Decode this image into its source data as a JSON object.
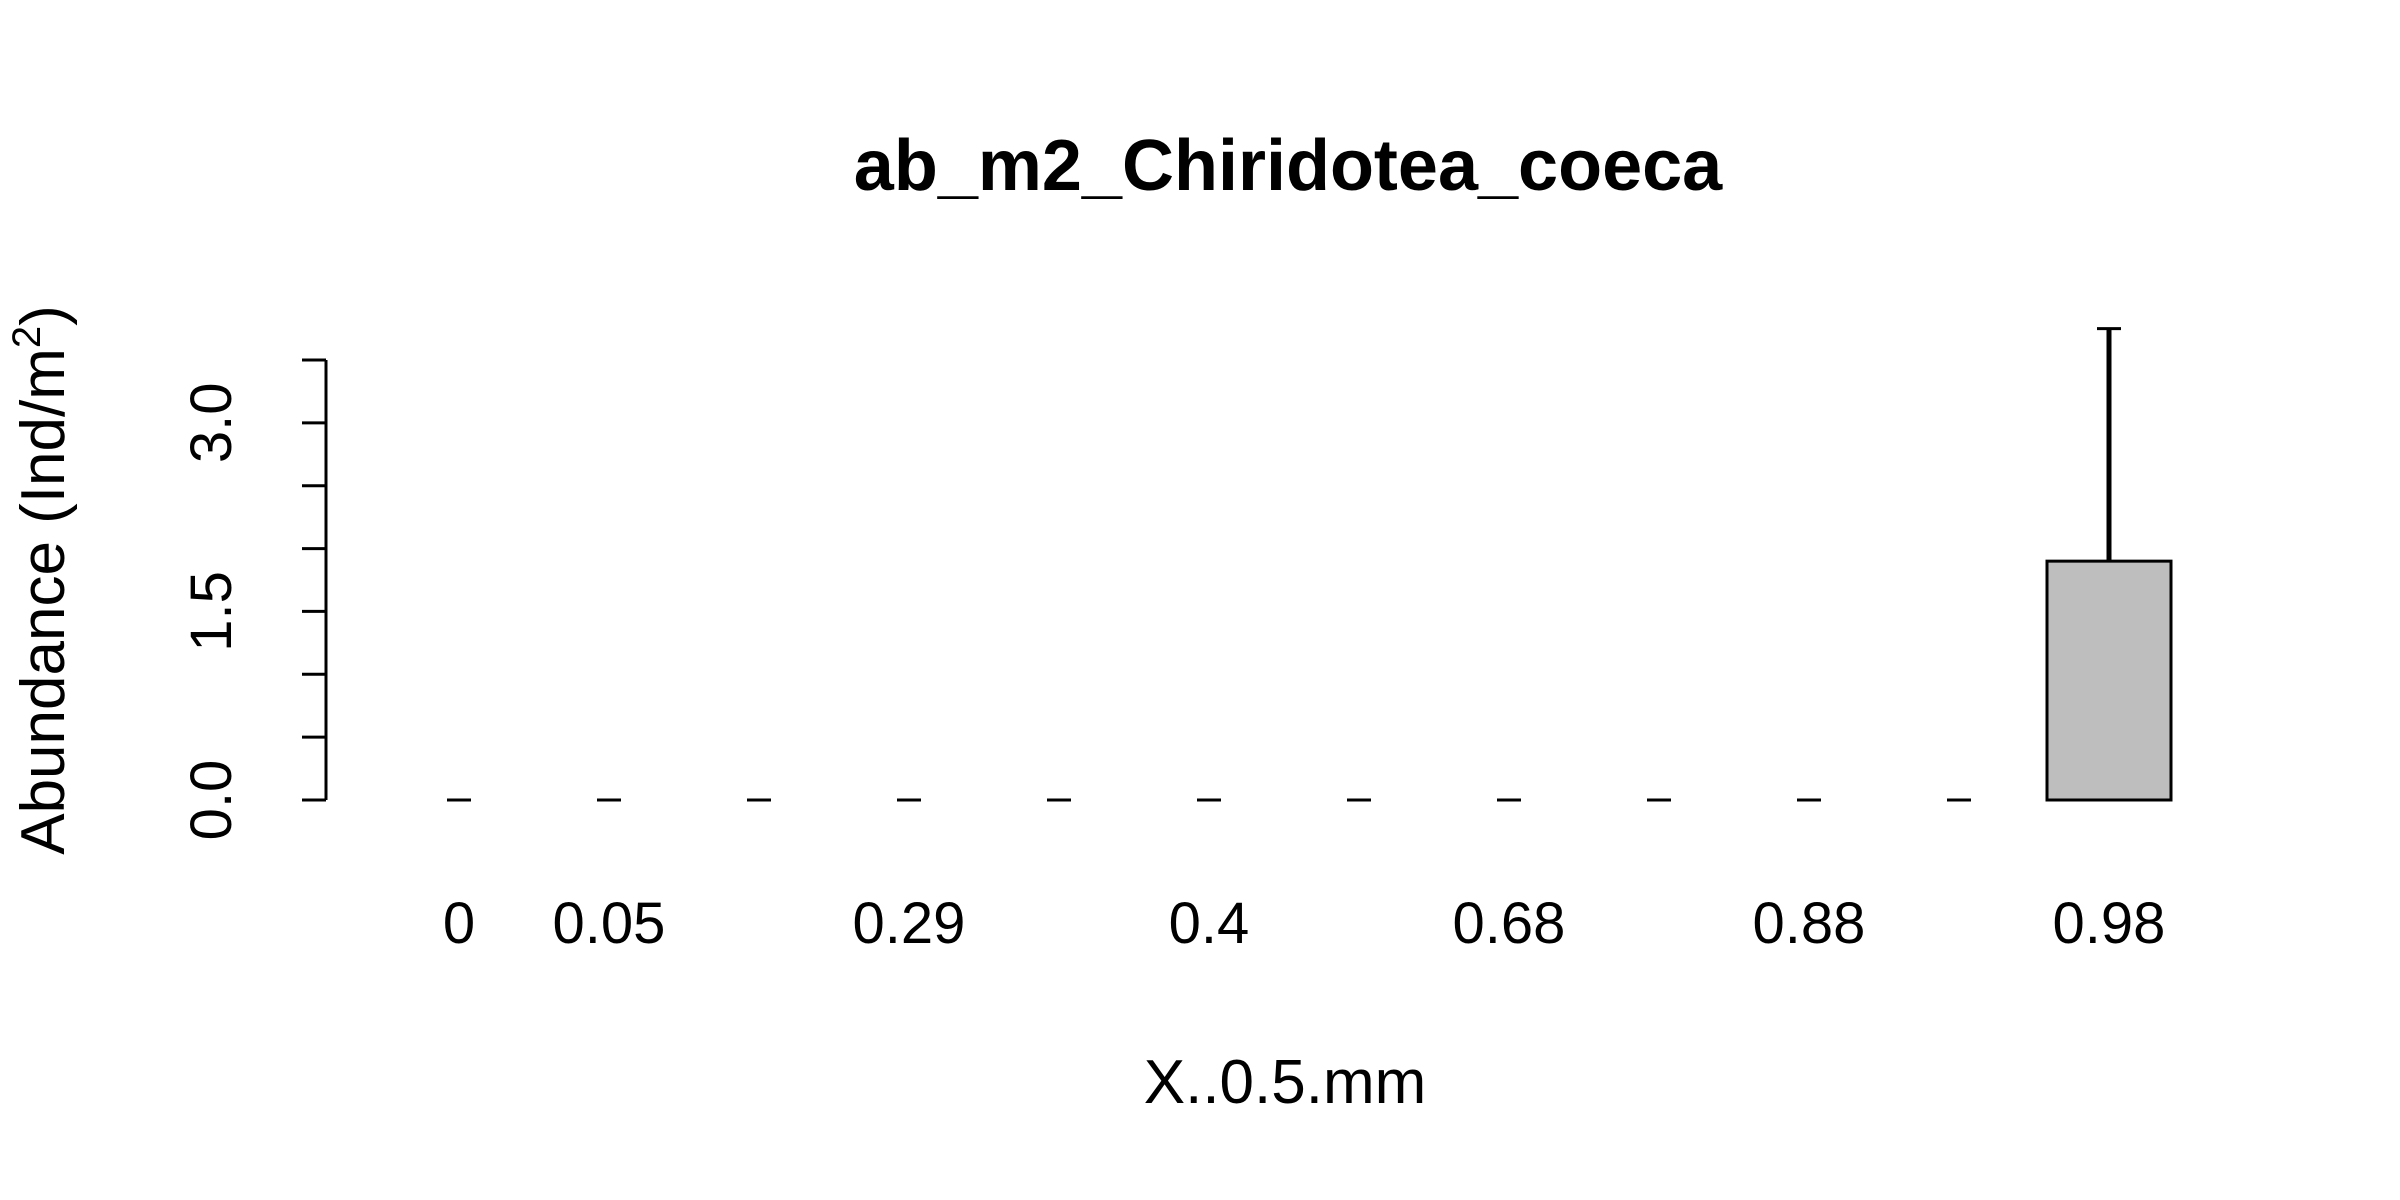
{
  "chart_data": {
    "type": "bar",
    "title": "ab_m2_Chiridotea_coeca",
    "xlabel": "X..0.5.mm",
    "ylabel": "Abundance (Ind/m",
    "ylabel_superscript": "2",
    "ylabel_suffix": ")",
    "categories": [
      "0",
      "0.05",
      "",
      "0.29",
      "",
      "0.4",
      "",
      "0.68",
      "",
      "0.88",
      "",
      "0.98"
    ],
    "values": [
      0,
      0,
      0,
      0,
      0,
      0,
      0,
      0,
      0,
      0,
      0,
      1.9
    ],
    "error_upper": [
      0,
      0,
      0,
      0,
      0,
      0,
      0,
      0,
      0,
      0,
      0,
      3.75
    ],
    "ylim": [
      0,
      3.5
    ],
    "yticks": [
      0,
      0.5,
      1,
      1.5,
      2,
      2.5,
      3,
      3.5
    ],
    "ytick_labels": [
      "0.0",
      "",
      "",
      "1.5",
      "",
      "",
      "3.0",
      ""
    ],
    "bar_color": "#bebebe",
    "grid": false
  }
}
